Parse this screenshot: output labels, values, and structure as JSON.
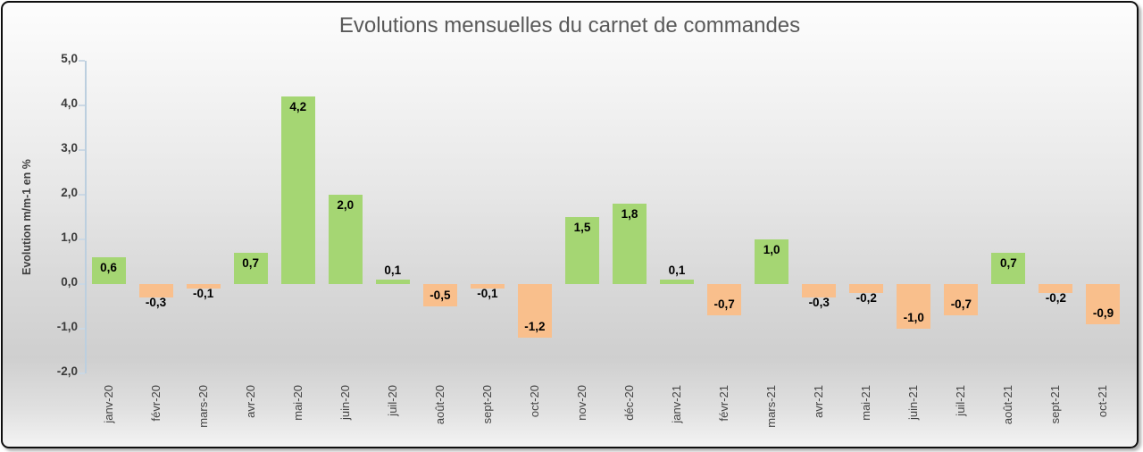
{
  "chart_data": {
    "type": "bar",
    "title": "Evolutions mensuelles du carnet de commandes",
    "ylabel": "Evolution m/m-1 en %",
    "xlabel": "",
    "ylim": [
      -2.0,
      5.0
    ],
    "ytick_values": [
      5,
      4,
      3,
      2,
      1,
      0,
      -1,
      -2
    ],
    "ytick_labels": [
      "5,0",
      "4,0",
      "3,0",
      "2,0",
      "1,0",
      "0,0",
      "-1,0",
      "-2,0"
    ],
    "grid": false,
    "legend": false,
    "decimal_separator": "comma",
    "categories": [
      "janv-20",
      "févr-20",
      "mars-20",
      "avr-20",
      "mai-20",
      "juin-20",
      "juil-20",
      "août-20",
      "sept-20",
      "oct-20",
      "nov-20",
      "déc-20",
      "janv-21",
      "févr-21",
      "mars-21",
      "avr-21",
      "mai-21",
      "juin-21",
      "juil-21",
      "août-21",
      "sept-21",
      "oct-21"
    ],
    "values": [
      0.6,
      -0.3,
      -0.1,
      0.7,
      4.2,
      2.0,
      0.1,
      -0.5,
      -0.1,
      -1.2,
      1.5,
      1.8,
      0.1,
      -0.7,
      1.0,
      -0.3,
      -0.2,
      -1.0,
      -0.7,
      0.7,
      -0.2,
      -0.9
    ],
    "value_labels": [
      "0,6",
      "-0,3",
      "-0,1",
      "0,7",
      "4,2",
      "2,0",
      "0,1",
      "-0,5",
      "-0,1",
      "-1,2",
      "1,5",
      "1,8",
      "0,1",
      "-0,7",
      "1,0",
      "-0,3",
      "-0,2",
      "-1,0",
      "-0,7",
      "0,7",
      "-0,2",
      "-0,9"
    ],
    "colors": {
      "positive_bar": "#A5D673",
      "negative_bar": "#F9BF8C",
      "axis_line": "#BCCFDF",
      "tick_mark": "#CBD8E4",
      "title_text": "#595959",
      "tick_text": "#3C3C3C",
      "data_label_text": "#000000",
      "frame_border": "#0E0E0E"
    }
  }
}
